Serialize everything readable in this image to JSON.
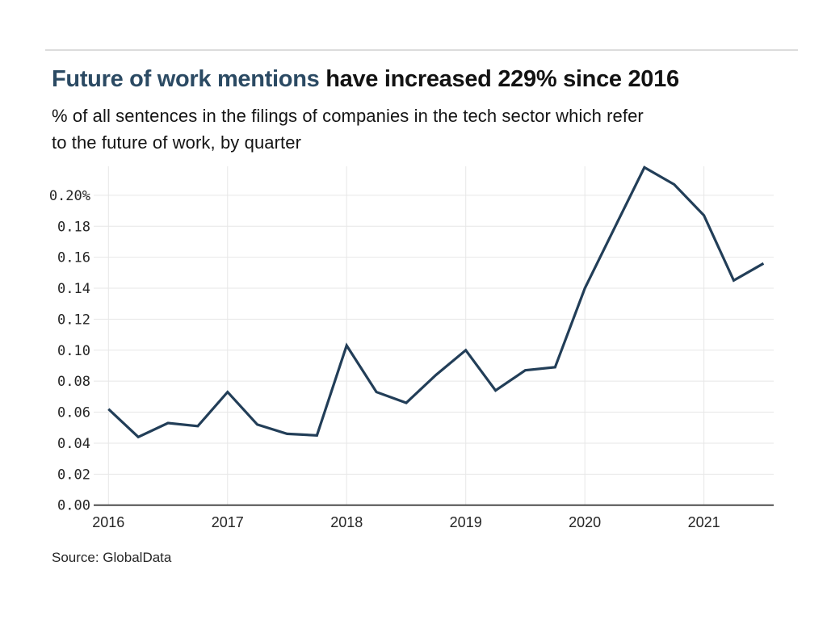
{
  "header": {
    "title_highlight": "Future of work mentions",
    "title_rest": " have increased 229% since 2016",
    "subtitle_line1": "% of all sentences in the filings of companies in the tech sector which refer",
    "subtitle_line2": "to the future of work, by quarter"
  },
  "footer": {
    "source": "Source: GlobalData"
  },
  "colors": {
    "title_accent": "#2b4a63",
    "series_line": "#223e58",
    "grid_line": "#e7e7e7",
    "axis_line": "#4d4d4d",
    "tick_text": "#262626",
    "divider": "#dcdcdc"
  },
  "chart_data": {
    "type": "line",
    "title": "Future of work mentions have increased 229% since 2016",
    "subtitle": "% of all sentences in the filings of companies in the tech sector which refer to the future of work, by quarter",
    "unit": "%",
    "grid": true,
    "legend": "none",
    "x": [
      "2016 Q1",
      "2016 Q2",
      "2016 Q3",
      "2016 Q4",
      "2017 Q1",
      "2017 Q2",
      "2017 Q3",
      "2017 Q4",
      "2018 Q1",
      "2018 Q2",
      "2018 Q3",
      "2018 Q4",
      "2019 Q1",
      "2019 Q2",
      "2019 Q3",
      "2019 Q4",
      "2020 Q1",
      "2020 Q2",
      "2020 Q3",
      "2020 Q4",
      "2021 Q1",
      "2021 Q2",
      "2021 Q3"
    ],
    "values": [
      0.062,
      0.044,
      0.053,
      0.051,
      0.073,
      0.052,
      0.046,
      0.045,
      0.103,
      0.073,
      0.066,
      0.084,
      0.1,
      0.074,
      0.087,
      0.089,
      0.14,
      0.179,
      0.218,
      0.207,
      0.187,
      0.145,
      0.156
    ],
    "x_tick_labels": [
      "2016",
      "2017",
      "2018",
      "2019",
      "2020",
      "2021"
    ],
    "y_tick_labels": [
      "0.20%",
      "0.18",
      "0.16",
      "0.14",
      "0.12",
      "0.10",
      "0.08",
      "0.06",
      "0.04",
      "0.02",
      "0.00"
    ],
    "y_tick_values": [
      0.2,
      0.18,
      0.16,
      0.14,
      0.12,
      0.1,
      0.08,
      0.06,
      0.04,
      0.02,
      0.0
    ],
    "ylim": [
      0,
      0.22
    ],
    "source": "Source: GlobalData"
  }
}
